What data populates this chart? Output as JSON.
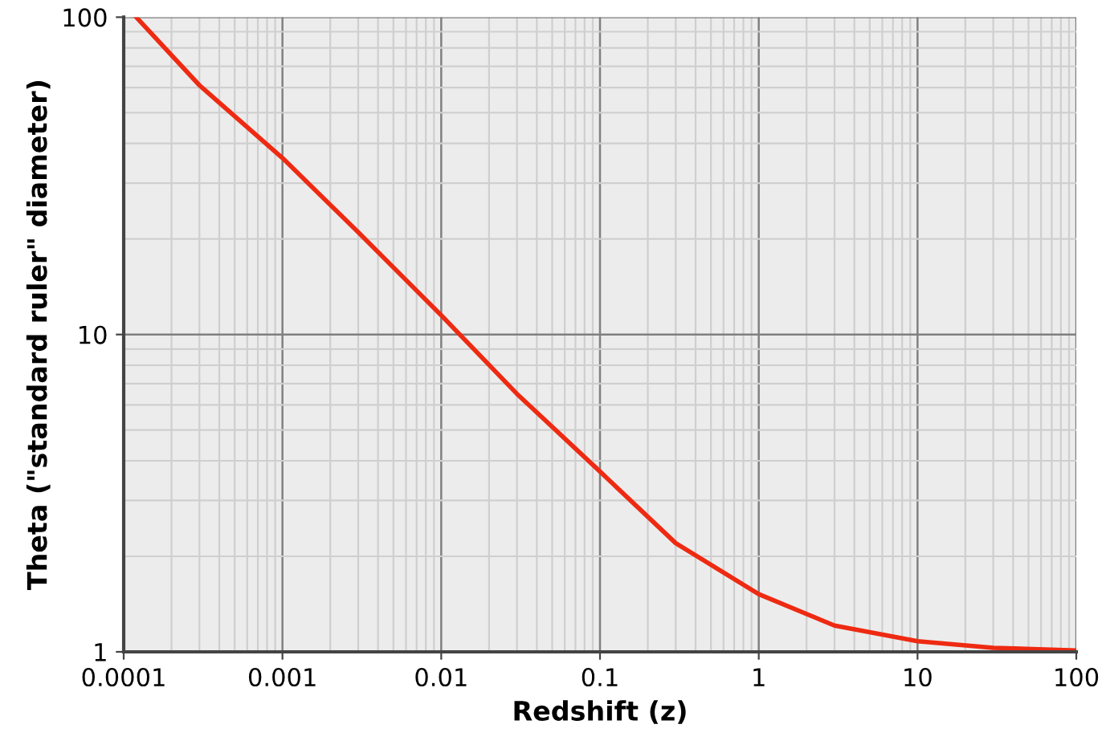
{
  "chart_data": {
    "type": "line",
    "xlabel": "Redshift (z)",
    "ylabel": "Theta (\"standard ruler\" diameter)",
    "log": "xy",
    "grid": true,
    "marker": "none",
    "line_style": "solid",
    "xlim": [
      0.0001,
      100
    ],
    "xticks": [
      0.0001,
      0.001,
      0.01,
      0.1,
      1,
      10,
      100
    ],
    "ylim": [
      1,
      100
    ],
    "yticks": [
      1,
      10,
      100
    ],
    "series": [
      {
        "color": "#ee2a12",
        "x": [
          0.00012,
          0.0003,
          0.001,
          0.003,
          0.01,
          0.03,
          0.1,
          0.3,
          1,
          3,
          10,
          30,
          100
        ],
        "values": [
          100,
          61,
          36,
          21,
          11.5,
          6.5,
          3.7,
          2.2,
          1.52,
          1.21,
          1.08,
          1.03,
          1.01
        ]
      }
    ]
  }
}
